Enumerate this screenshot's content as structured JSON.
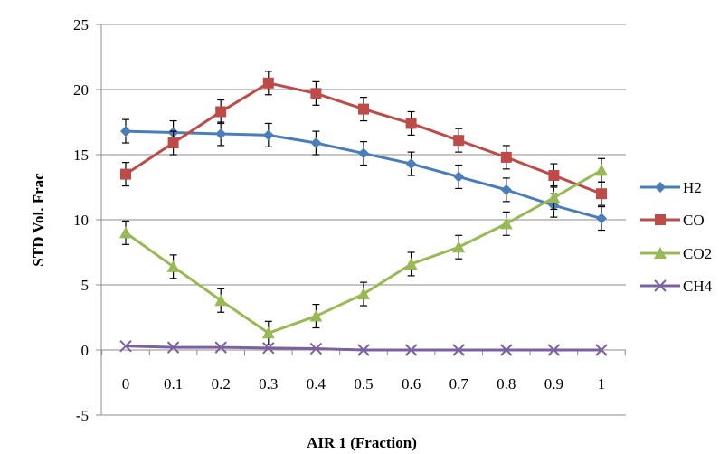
{
  "chart_data": {
    "type": "line",
    "xlabel": "AIR 1 (Fraction)",
    "ylabel": "STD Vol. Frac",
    "ylim": [
      -5,
      25
    ],
    "yticks": [
      -5,
      0,
      5,
      10,
      15,
      20,
      25
    ],
    "categories": [
      "0",
      "0.1",
      "0.2",
      "0.3",
      "0.4",
      "0.5",
      "0.6",
      "0.7",
      "0.8",
      "0.9",
      "1"
    ],
    "x": [
      0,
      0.1,
      0.2,
      0.3,
      0.4,
      0.5,
      0.6,
      0.7,
      0.8,
      0.9,
      1
    ],
    "grid": "horizontal",
    "legend_position": "right",
    "series": [
      {
        "name": "H2",
        "color": "#4a7ebb",
        "marker": "diamond",
        "values": [
          16.8,
          16.7,
          16.6,
          16.5,
          15.9,
          15.1,
          14.3,
          13.3,
          12.3,
          11.1,
          10.1
        ],
        "error": [
          0.9,
          0.9,
          0.9,
          0.9,
          0.9,
          0.9,
          0.9,
          0.9,
          0.9,
          0.9,
          0.9
        ]
      },
      {
        "name": "CO",
        "color": "#be4b48",
        "marker": "square",
        "values": [
          13.5,
          15.9,
          18.3,
          20.5,
          19.7,
          18.5,
          17.4,
          16.1,
          14.8,
          13.4,
          12.0
        ],
        "error": [
          0.9,
          0.9,
          0.9,
          0.9,
          0.9,
          0.9,
          0.9,
          0.9,
          0.9,
          0.9,
          0.9
        ]
      },
      {
        "name": "CO2",
        "color": "#98b954",
        "marker": "triangle",
        "values": [
          9.0,
          6.4,
          3.8,
          1.3,
          2.6,
          4.3,
          6.6,
          7.9,
          9.7,
          11.7,
          13.8
        ],
        "error": [
          0.9,
          0.9,
          0.9,
          0.9,
          0.9,
          0.9,
          0.9,
          0.9,
          0.9,
          0.9,
          0.9
        ]
      },
      {
        "name": "CH4",
        "color": "#7d60a0",
        "marker": "x",
        "values": [
          0.3,
          0.2,
          0.2,
          0.15,
          0.1,
          0.0,
          0.0,
          0.0,
          0.0,
          0.0,
          0.0
        ],
        "error": [
          0,
          0,
          0,
          0,
          0,
          0,
          0,
          0,
          0,
          0,
          0
        ]
      }
    ]
  }
}
